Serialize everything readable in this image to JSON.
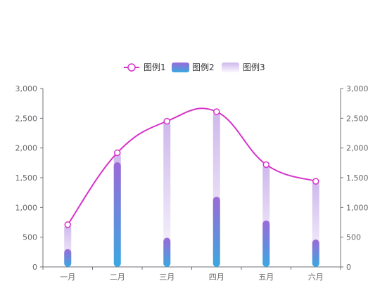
{
  "chart_data": {
    "type": "bar",
    "categories": [
      "一月",
      "二月",
      "三月",
      "四月",
      "五月",
      "六月"
    ],
    "series": [
      {
        "name": "图例1",
        "type": "line",
        "axis": "left",
        "values": [
          710,
          1920,
          2450,
          2610,
          1720,
          1440
        ]
      },
      {
        "name": "图例2",
        "type": "bar",
        "axis": "left",
        "values": [
          300,
          1760,
          490,
          1180,
          780,
          460
        ]
      },
      {
        "name": "图例3",
        "type": "bar",
        "axis": "left",
        "values": [
          710,
          1920,
          2450,
          2610,
          1720,
          1440
        ]
      }
    ],
    "y_left": {
      "min": 0,
      "max": 3000,
      "ticks": [
        "0",
        "500",
        "1,000",
        "1,500",
        "2,000",
        "2,500",
        "3,000"
      ]
    },
    "y_right": {
      "min": 0,
      "max": 3000,
      "ticks": [
        "0",
        "500",
        "1,000",
        "1,500",
        "2,000",
        "2,500",
        "3,000"
      ]
    },
    "legend_position": "top-center",
    "colors": {
      "line": "#d633c9",
      "bar_top": "#9b6ad8",
      "bar_bottom": "#3aa8e0",
      "shadow": "#c9b0ea"
    }
  }
}
